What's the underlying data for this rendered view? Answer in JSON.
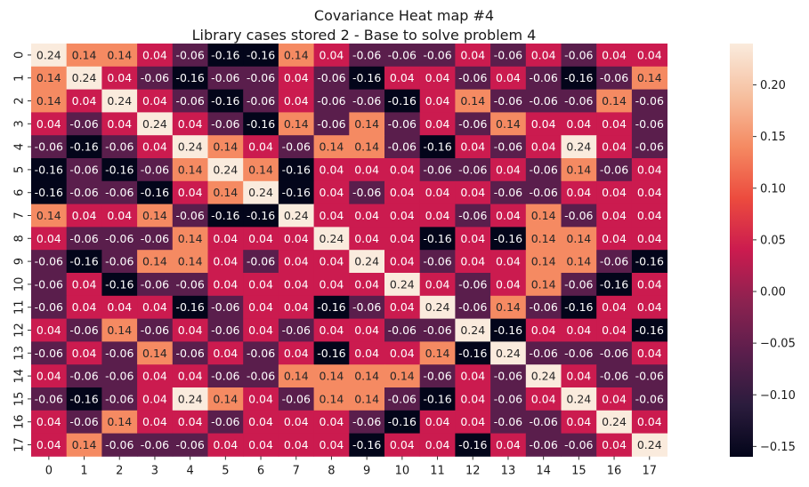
{
  "chart_data": {
    "type": "heatmap",
    "title": "Covariance Heat map #4",
    "subtitle": "Library cases stored 2 - Base to solve problem 4",
    "x_categories": [
      "0",
      "1",
      "2",
      "3",
      "4",
      "5",
      "6",
      "7",
      "8",
      "9",
      "10",
      "11",
      "12",
      "13",
      "14",
      "15",
      "16",
      "17"
    ],
    "y_categories": [
      "0",
      "1",
      "2",
      "3",
      "4",
      "5",
      "6",
      "7",
      "8",
      "9",
      "10",
      "11",
      "12",
      "13",
      "14",
      "15",
      "16",
      "17"
    ],
    "values": [
      [
        0.24,
        0.14,
        0.14,
        0.04,
        -0.06,
        -0.16,
        -0.16,
        0.14,
        0.04,
        -0.06,
        -0.06,
        -0.06,
        0.04,
        -0.06,
        0.04,
        -0.06,
        0.04,
        0.04
      ],
      [
        0.14,
        0.24,
        0.04,
        -0.06,
        -0.16,
        -0.06,
        -0.06,
        0.04,
        -0.06,
        -0.16,
        0.04,
        0.04,
        -0.06,
        0.04,
        -0.06,
        -0.16,
        -0.06,
        0.14
      ],
      [
        0.14,
        0.04,
        0.24,
        0.04,
        -0.06,
        -0.16,
        -0.06,
        0.04,
        -0.06,
        -0.06,
        -0.16,
        0.04,
        0.14,
        -0.06,
        -0.06,
        -0.06,
        0.14,
        -0.06
      ],
      [
        0.04,
        -0.06,
        0.04,
        0.24,
        0.04,
        -0.06,
        -0.16,
        0.14,
        -0.06,
        0.14,
        -0.06,
        0.04,
        -0.06,
        0.14,
        0.04,
        0.04,
        0.04,
        -0.06
      ],
      [
        -0.06,
        -0.16,
        -0.06,
        0.04,
        0.24,
        0.14,
        0.04,
        -0.06,
        0.14,
        0.14,
        -0.06,
        -0.16,
        0.04,
        -0.06,
        0.04,
        0.24,
        0.04,
        -0.06
      ],
      [
        -0.16,
        -0.06,
        -0.16,
        -0.06,
        0.14,
        0.24,
        0.14,
        -0.16,
        0.04,
        0.04,
        0.04,
        -0.06,
        -0.06,
        0.04,
        -0.06,
        0.14,
        -0.06,
        0.04
      ],
      [
        -0.16,
        -0.06,
        -0.06,
        -0.16,
        0.04,
        0.14,
        0.24,
        -0.16,
        0.04,
        -0.06,
        0.04,
        0.04,
        0.04,
        -0.06,
        -0.06,
        0.04,
        0.04,
        0.04
      ],
      [
        0.14,
        0.04,
        0.04,
        0.14,
        -0.06,
        -0.16,
        -0.16,
        0.24,
        0.04,
        0.04,
        0.04,
        0.04,
        -0.06,
        0.04,
        0.14,
        -0.06,
        0.04,
        0.04
      ],
      [
        0.04,
        -0.06,
        -0.06,
        -0.06,
        0.14,
        0.04,
        0.04,
        0.04,
        0.24,
        0.04,
        0.04,
        -0.16,
        0.04,
        -0.16,
        0.14,
        0.14,
        0.04,
        0.04
      ],
      [
        -0.06,
        -0.16,
        -0.06,
        0.14,
        0.14,
        0.04,
        -0.06,
        0.04,
        0.04,
        0.24,
        0.04,
        -0.06,
        0.04,
        0.04,
        0.14,
        0.14,
        -0.06,
        -0.16
      ],
      [
        -0.06,
        0.04,
        -0.16,
        -0.06,
        -0.06,
        0.04,
        0.04,
        0.04,
        0.04,
        0.04,
        0.24,
        0.04,
        -0.06,
        0.04,
        0.14,
        -0.06,
        -0.16,
        0.04
      ],
      [
        -0.06,
        0.04,
        0.04,
        0.04,
        -0.16,
        -0.06,
        0.04,
        0.04,
        -0.16,
        -0.06,
        0.04,
        0.24,
        -0.06,
        0.14,
        -0.06,
        -0.16,
        0.04,
        0.04
      ],
      [
        0.04,
        -0.06,
        0.14,
        -0.06,
        0.04,
        -0.06,
        0.04,
        -0.06,
        0.04,
        0.04,
        -0.06,
        -0.06,
        0.24,
        -0.16,
        0.04,
        0.04,
        0.04,
        -0.16
      ],
      [
        -0.06,
        0.04,
        -0.06,
        0.14,
        -0.06,
        0.04,
        -0.06,
        0.04,
        -0.16,
        0.04,
        0.04,
        0.14,
        -0.16,
        0.24,
        -0.06,
        -0.06,
        -0.06,
        0.04
      ],
      [
        0.04,
        -0.06,
        -0.06,
        0.04,
        0.04,
        -0.06,
        -0.06,
        0.14,
        0.14,
        0.14,
        0.14,
        -0.06,
        0.04,
        -0.06,
        0.24,
        0.04,
        -0.06,
        -0.06
      ],
      [
        -0.06,
        -0.16,
        -0.06,
        0.04,
        0.24,
        0.14,
        0.04,
        -0.06,
        0.14,
        0.14,
        -0.06,
        -0.16,
        0.04,
        -0.06,
        0.04,
        0.24,
        0.04,
        -0.06
      ],
      [
        0.04,
        -0.06,
        0.14,
        0.04,
        0.04,
        -0.06,
        0.04,
        0.04,
        0.04,
        -0.06,
        -0.16,
        0.04,
        0.04,
        -0.06,
        -0.06,
        0.04,
        0.24,
        0.04
      ],
      [
        0.04,
        0.14,
        -0.06,
        -0.06,
        -0.06,
        0.04,
        0.04,
        0.04,
        0.04,
        -0.16,
        0.04,
        0.04,
        -0.16,
        0.04,
        -0.06,
        -0.06,
        0.04,
        0.24
      ]
    ],
    "value_format": "0.00",
    "vmin": -0.16,
    "vmax": 0.24,
    "colormap": "rocket",
    "colorbar": {
      "ticks": [
        0.2,
        0.15,
        0.1,
        0.05,
        0.0,
        -0.05,
        -0.1,
        -0.15
      ],
      "tick_labels": [
        "0.20",
        "0.15",
        "0.10",
        "0.05",
        "0.00",
        "−0.05",
        "−0.10",
        "−0.15"
      ]
    },
    "annotations": true,
    "grid": false,
    "xlabel": "",
    "ylabel": ""
  }
}
